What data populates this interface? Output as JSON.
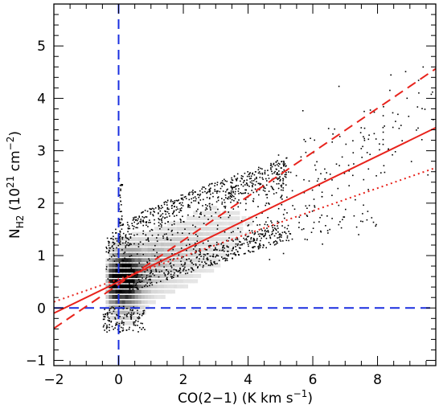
{
  "chart_data": {
    "type": "scatter",
    "xlabel_main": "CO(2",
    "xlabel_minus": "−",
    "xlabel_rest": "1) (K km s",
    "xlabel_sup": "−1",
    "xlabel_close": ")",
    "ylabel_main": "N",
    "ylabel_sub": "H2",
    "ylabel_unit_open": " (10",
    "ylabel_sup1": "21",
    "ylabel_unit_mid": " cm",
    "ylabel_sup2": "−2",
    "ylabel_close": ")",
    "xlim": [
      -2,
      9.8
    ],
    "ylim": [
      -1.1,
      5.8
    ],
    "x_ticks": [
      -2,
      0,
      2,
      4,
      6,
      8
    ],
    "x_tick_labels": [
      "−2",
      "0",
      "2",
      "4",
      "6",
      "8"
    ],
    "y_ticks": [
      -1,
      0,
      1,
      2,
      3,
      4,
      5
    ],
    "y_tick_labels": [
      "−1",
      "0",
      "1",
      "2",
      "3",
      "4",
      "5"
    ],
    "x_minor_step": 0.5,
    "y_minor_step": 0.2,
    "reference_lines": [
      {
        "orientation": "vertical",
        "value": 0,
        "color": "#1a2fe0",
        "style": "dashed"
      },
      {
        "orientation": "horizontal",
        "value": 0,
        "color": "#1a2fe0",
        "style": "dashed"
      }
    ],
    "fit_lines": [
      {
        "style": "solid",
        "color": "#e8231c",
        "intercept": 0.5,
        "slope": 0.3
      },
      {
        "style": "dashed",
        "color": "#e8231c",
        "intercept": 0.45,
        "slope": 0.42
      },
      {
        "style": "dotted",
        "color": "#e8231c",
        "intercept": 0.55,
        "slope": 0.217
      }
    ],
    "density_color": "#000000",
    "scatter_color": "#000000"
  }
}
